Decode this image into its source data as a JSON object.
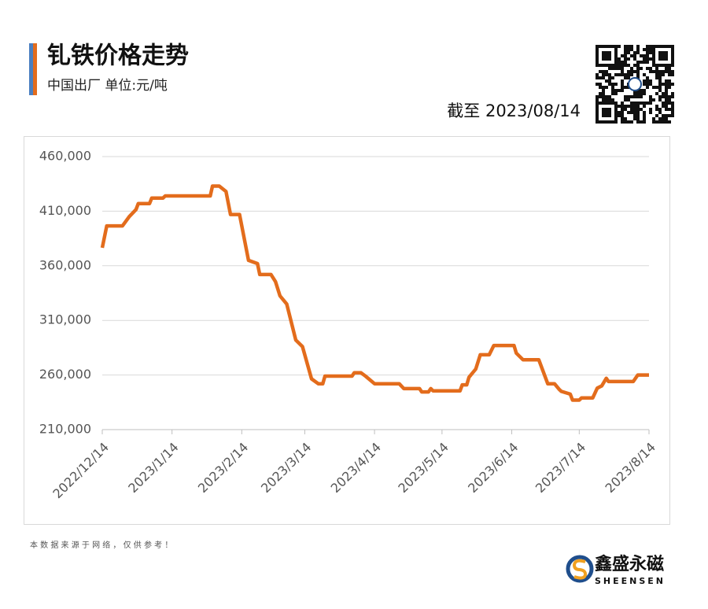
{
  "chart_data": {
    "type": "line",
    "title": "钆铁价格走势",
    "subtitle": "中国出厂  单位:元/吨",
    "as_of": "截至 2023/08/14",
    "source_note": "本 数 据 来 源 于 网 络 ， 仅 供 参 考 ！",
    "brand_name": "鑫盛永磁",
    "brand_sub": "SHEENSEN",
    "x": [
      "2022/12/14",
      "2022/12/16",
      "2022/12/23",
      "2022/12/26",
      "2022/12/29",
      "2022/12/30",
      "2023/1/4",
      "2023/1/5",
      "2023/1/10",
      "2023/1/11",
      "2023/1/31",
      "2023/2/1",
      "2023/2/4",
      "2023/2/7",
      "2023/2/9",
      "2023/2/13",
      "2023/2/17",
      "2023/2/21",
      "2023/2/22",
      "2023/2/27",
      "2023/3/1",
      "2023/3/3",
      "2023/3/6",
      "2023/3/10",
      "2023/3/13",
      "2023/3/17",
      "2023/3/20",
      "2023/3/22",
      "2023/3/23",
      "2023/4/4",
      "2023/4/5",
      "2023/4/8",
      "2023/4/10",
      "2023/4/14",
      "2023/4/25",
      "2023/4/27",
      "2023/5/4",
      "2023/5/5",
      "2023/5/8",
      "2023/5/9",
      "2023/5/10",
      "2023/5/22",
      "2023/5/23",
      "2023/5/25",
      "2023/5/26",
      "2023/5/29",
      "2023/5/31",
      "2023/6/4",
      "2023/6/6",
      "2023/6/15",
      "2023/6/16",
      "2023/6/19",
      "2023/6/26",
      "2023/6/30",
      "2023/7/3",
      "2023/7/5",
      "2023/7/6",
      "2023/7/10",
      "2023/7/11",
      "2023/7/14",
      "2023/7/15",
      "2023/7/20",
      "2023/7/22",
      "2023/7/24",
      "2023/7/26",
      "2023/7/27",
      "2023/8/7",
      "2023/8/9",
      "2023/8/14"
    ],
    "series": [
      {
        "name": "钆铁",
        "color": "#e36c1c",
        "values": [
          376500,
          396500,
          396500,
          405000,
          411500,
          417000,
          417000,
          422000,
          422000,
          424000,
          424000,
          433000,
          433000,
          428000,
          407000,
          407000,
          365000,
          362000,
          352000,
          352000,
          345500,
          332500,
          325000,
          292000,
          286000,
          256500,
          252000,
          252000,
          259000,
          259000,
          262000,
          262000,
          259000,
          252000,
          252000,
          247500,
          247500,
          244500,
          244500,
          247500,
          245500,
          245500,
          251000,
          251000,
          258000,
          265500,
          278500,
          278500,
          287000,
          287000,
          280000,
          274000,
          274000,
          252000,
          252000,
          247000,
          245000,
          242500,
          237000,
          237000,
          239000,
          239000,
          248000,
          250000,
          257000,
          254000,
          254000,
          260000,
          260000
        ]
      }
    ],
    "xlim": [
      "2022/12/14",
      "2023/8/14"
    ],
    "xticks": [
      "2022/12/14",
      "2023/1/14",
      "2023/2/14",
      "2023/3/14",
      "2023/4/14",
      "2023/5/14",
      "2023/6/14",
      "2023/7/14",
      "2023/8/14"
    ],
    "ylim": [
      210000,
      460000
    ],
    "yticks": [
      {
        "value": 210000,
        "label": "210,000"
      },
      {
        "value": 260000,
        "label": "260,000"
      },
      {
        "value": 310000,
        "label": "310,000"
      },
      {
        "value": 360000,
        "label": "360,000"
      },
      {
        "value": 410000,
        "label": "410,000"
      },
      {
        "value": 460000,
        "label": "460,000"
      }
    ],
    "grid": true
  }
}
